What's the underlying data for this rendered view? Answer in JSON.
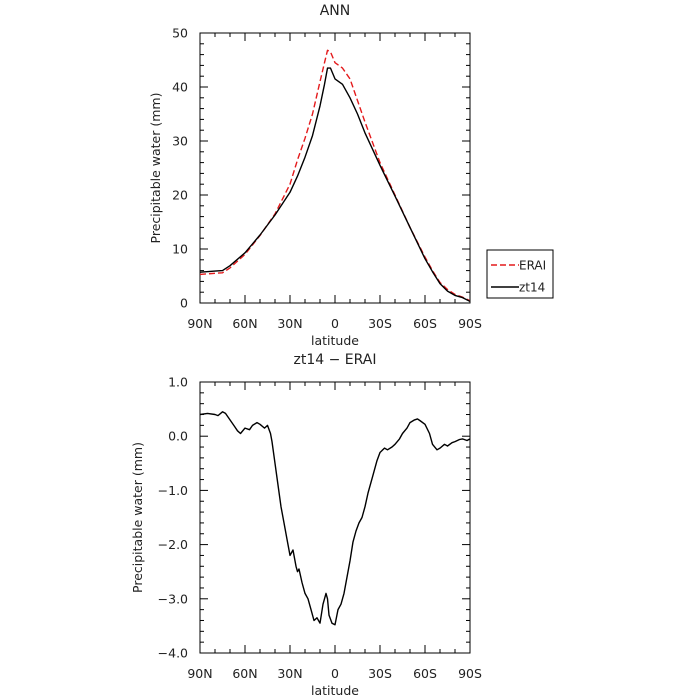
{
  "chart_data": [
    {
      "type": "line",
      "title": "ANN",
      "xlabel": "latitude",
      "ylabel": "Precipitable water (mm)",
      "xlim": [
        90,
        -90
      ],
      "ylim": [
        0,
        50
      ],
      "x_ticks": [
        90,
        60,
        30,
        0,
        -30,
        -60,
        -90
      ],
      "x_tick_labels": [
        "90N",
        "60N",
        "30N",
        "0",
        "30S",
        "60S",
        "90S"
      ],
      "y_ticks": [
        0,
        10,
        20,
        30,
        40,
        50
      ],
      "y_tick_labels": [
        "0",
        "10",
        "20",
        "30",
        "40",
        "50"
      ],
      "legend_position": "right",
      "series": [
        {
          "name": "ERAI",
          "color": "#e41a1c",
          "dash": "dashed",
          "x": [
            90,
            80,
            75,
            70,
            60,
            50,
            40,
            30,
            25,
            20,
            15,
            10,
            7,
            5,
            3,
            0,
            -5,
            -10,
            -15,
            -20,
            -30,
            -40,
            -50,
            -60,
            -65,
            -70,
            -75,
            -80,
            -85,
            -90
          ],
          "y": [
            5.3,
            5.5,
            5.6,
            6.5,
            9,
            12.5,
            16.5,
            22,
            26.5,
            30.5,
            35,
            41,
            44.5,
            46.8,
            46.5,
            44.5,
            43.5,
            41.5,
            37.5,
            33.5,
            26,
            20,
            14,
            8.5,
            6,
            3.8,
            2.5,
            1.6,
            1.1,
            0.4
          ]
        },
        {
          "name": "zt14",
          "color": "#000000",
          "dash": "solid",
          "x": [
            90,
            80,
            75,
            70,
            60,
            50,
            40,
            30,
            25,
            20,
            15,
            10,
            7,
            5,
            3,
            0,
            -5,
            -10,
            -15,
            -20,
            -30,
            -40,
            -50,
            -60,
            -65,
            -70,
            -75,
            -80,
            -85,
            -90
          ],
          "y": [
            5.7,
            5.9,
            6.0,
            6.9,
            9.3,
            12.6,
            16.3,
            20.5,
            23.5,
            27,
            31,
            36.5,
            40.5,
            43.5,
            43.5,
            41.5,
            40.5,
            38,
            35,
            31.5,
            25.5,
            19.8,
            14,
            8.2,
            5.8,
            3.6,
            2.2,
            1.4,
            1.0,
            0.3
          ]
        }
      ]
    },
    {
      "type": "line",
      "title": "zt14 − ERAI",
      "xlabel": "latitude",
      "ylabel": "Precipitable water (mm)",
      "xlim": [
        90,
        -90
      ],
      "ylim": [
        -4.0,
        1.0
      ],
      "x_ticks": [
        90,
        60,
        30,
        0,
        -30,
        -60,
        -90
      ],
      "x_tick_labels": [
        "90N",
        "60N",
        "30N",
        "0",
        "30S",
        "60S",
        "90S"
      ],
      "y_ticks": [
        -4.0,
        -3.0,
        -2.0,
        -1.0,
        0.0,
        1.0
      ],
      "y_tick_labels": [
        "−4.0",
        "−3.0",
        "−2.0",
        "−1.0",
        "0.0",
        "1.0"
      ],
      "series": [
        {
          "name": "",
          "color": "#000000",
          "dash": "solid",
          "x": [
            90,
            85,
            80,
            78,
            75,
            73,
            70,
            67,
            65,
            63,
            60,
            57,
            55,
            52,
            50,
            47,
            45,
            43,
            42,
            40,
            38,
            36,
            34,
            32,
            30,
            28,
            26,
            25,
            24,
            22,
            20,
            18,
            16,
            14,
            12,
            10,
            8,
            6,
            5,
            4,
            2,
            0,
            -2,
            -4,
            -6,
            -8,
            -10,
            -12,
            -14,
            -16,
            -18,
            -20,
            -22,
            -25,
            -28,
            -30,
            -33,
            -35,
            -38,
            -40,
            -43,
            -45,
            -48,
            -50,
            -53,
            -55,
            -57,
            -60,
            -63,
            -65,
            -68,
            -70,
            -73,
            -75,
            -78,
            -80,
            -83,
            -85,
            -88,
            -90
          ],
          "y": [
            0.4,
            0.42,
            0.4,
            0.38,
            0.45,
            0.42,
            0.3,
            0.18,
            0.1,
            0.05,
            0.15,
            0.12,
            0.2,
            0.25,
            0.22,
            0.15,
            0.2,
            0.05,
            -0.1,
            -0.5,
            -0.9,
            -1.3,
            -1.6,
            -1.9,
            -2.2,
            -2.1,
            -2.4,
            -2.5,
            -2.45,
            -2.7,
            -2.9,
            -3.0,
            -3.2,
            -3.4,
            -3.35,
            -3.45,
            -3.1,
            -2.9,
            -3.0,
            -3.3,
            -3.45,
            -3.48,
            -3.2,
            -3.1,
            -2.9,
            -2.6,
            -2.3,
            -1.95,
            -1.75,
            -1.6,
            -1.5,
            -1.3,
            -1.05,
            -0.75,
            -0.45,
            -0.3,
            -0.22,
            -0.25,
            -0.2,
            -0.15,
            -0.05,
            0.05,
            0.15,
            0.25,
            0.3,
            0.32,
            0.28,
            0.22,
            0.05,
            -0.15,
            -0.25,
            -0.22,
            -0.15,
            -0.18,
            -0.12,
            -0.1,
            -0.06,
            -0.05,
            -0.08,
            -0.05
          ]
        }
      ]
    }
  ]
}
